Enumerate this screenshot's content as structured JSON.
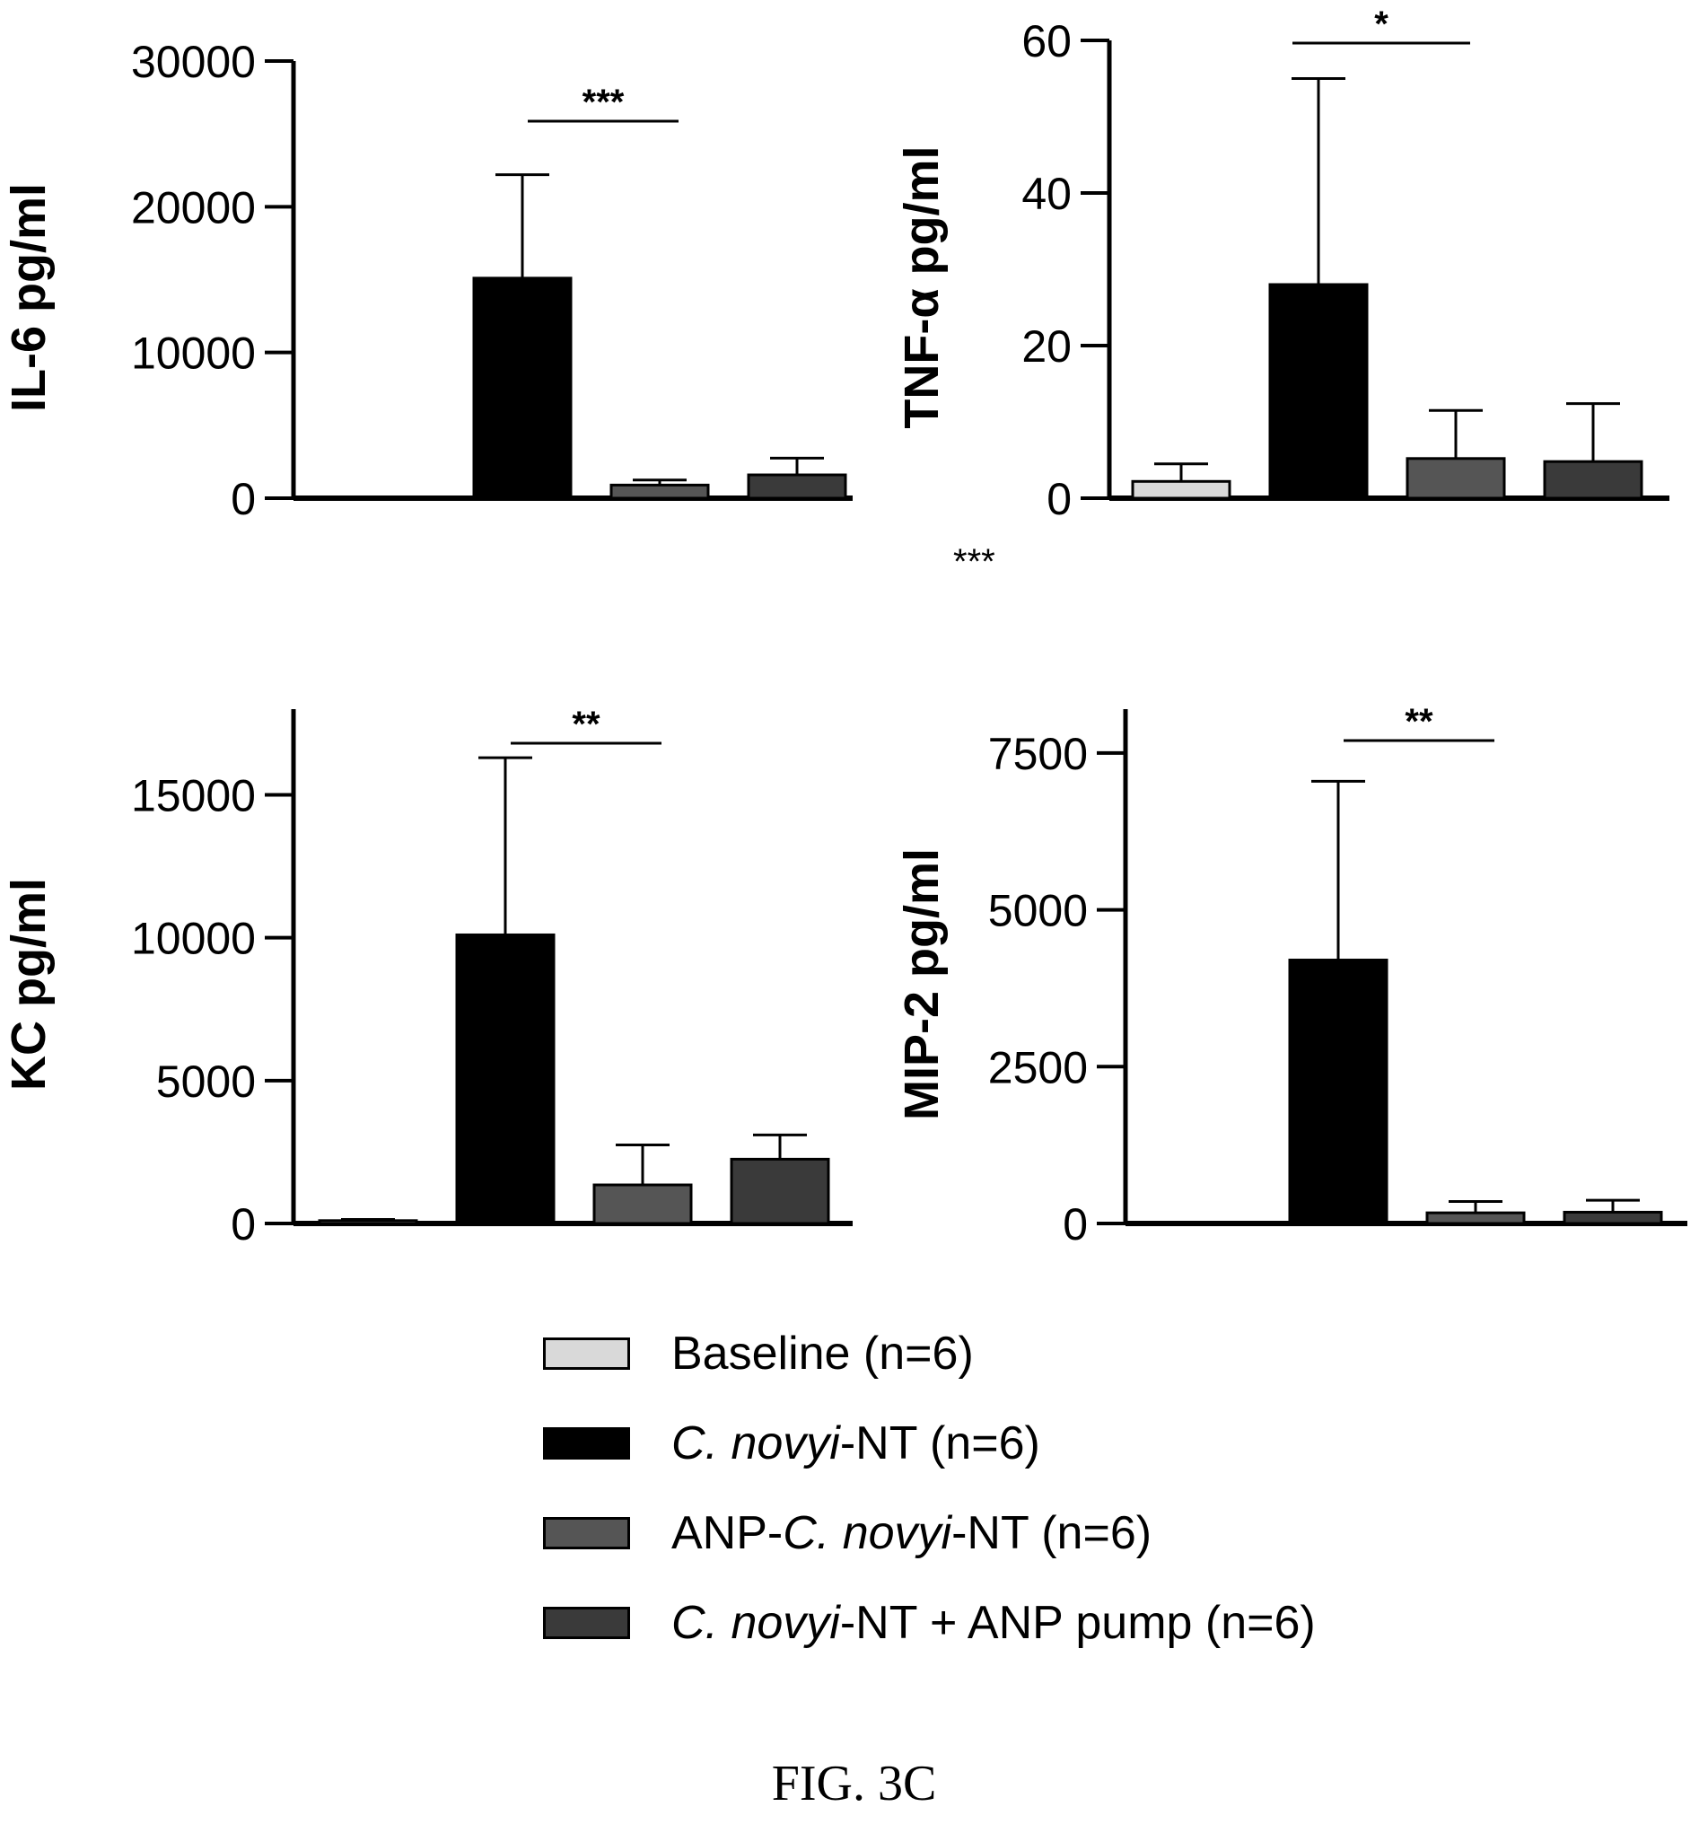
{
  "chart_data": [
    {
      "type": "bar",
      "ylabel": "IL-6 pg/ml",
      "ylim": [
        0,
        30000
      ],
      "yticks": [
        "0",
        "10000",
        "20000",
        "30000"
      ],
      "categories": [
        "Baseline (n=6)",
        "C. novyi-NT (n=6)",
        "ANP-C. novyi-NT (n=6)",
        "C. novyi-NT + ANP pump (n=6)"
      ],
      "values": [
        0,
        15100,
        900,
        1600
      ],
      "errors": [
        0,
        7100,
        350,
        1150
      ],
      "significance": {
        "label": "***",
        "from": 1,
        "to": 2
      }
    },
    {
      "type": "bar",
      "ylabel": "TNF-α pg/ml",
      "ylim": [
        0,
        60
      ],
      "yticks": [
        "0",
        "20",
        "40",
        "60"
      ],
      "categories": [
        "Baseline (n=6)",
        "C. novyi-NT (n=6)",
        "ANP-C. novyi-NT (n=6)",
        "C. novyi-NT + ANP pump (n=6)"
      ],
      "values": [
        2.2,
        28,
        5.2,
        4.8
      ],
      "errors": [
        2.3,
        27,
        6.3,
        7.6
      ],
      "significance": {
        "label": "*",
        "from": 1,
        "to": 2
      }
    },
    {
      "type": "bar",
      "ylabel": "KC pg/ml",
      "ylim": [
        0,
        18000
      ],
      "yticks": [
        "0",
        "5000",
        "10000",
        "15000"
      ],
      "categories": [
        "Baseline (n=6)",
        "C. novyi-NT (n=6)",
        "ANP-C. novyi-NT (n=6)",
        "C. novyi-NT + ANP pump (n=6)"
      ],
      "values": [
        100,
        10100,
        1350,
        2250
      ],
      "errors": [
        40,
        6200,
        1400,
        850
      ],
      "significance": {
        "label": "**",
        "from": 1,
        "to": 2
      }
    },
    {
      "type": "bar",
      "ylabel": "MIP-2 pg/ml",
      "ylim": [
        0,
        8200
      ],
      "yticks": [
        "0",
        "2500",
        "5000",
        "7500"
      ],
      "categories": [
        "Baseline (n=6)",
        "C. novyi-NT (n=6)",
        "ANP-C. novyi-NT (n=6)",
        "C. novyi-NT + ANP pump (n=6)"
      ],
      "values": [
        0,
        4200,
        170,
        180
      ],
      "errors": [
        0,
        2850,
        180,
        190
      ],
      "significance": {
        "label": "**",
        "from": 1,
        "to": 2
      }
    }
  ],
  "series_colors": [
    "#d9d9d9",
    "#000000",
    "#555555",
    "#3a3a3a"
  ],
  "between_panels_mark": "***",
  "legend": [
    {
      "pre": "",
      "italic": "",
      "post": "Baseline (n=6)"
    },
    {
      "pre": "",
      "italic": "C. novyi",
      "post": "-NT (n=6)"
    },
    {
      "pre": "ANP-",
      "italic": "C. novyi",
      "post": "-NT (n=6)"
    },
    {
      "pre": "",
      "italic": "C. novyi",
      "post": "-NT + ANP pump (n=6)"
    }
  ],
  "caption": "FIG. 3C"
}
